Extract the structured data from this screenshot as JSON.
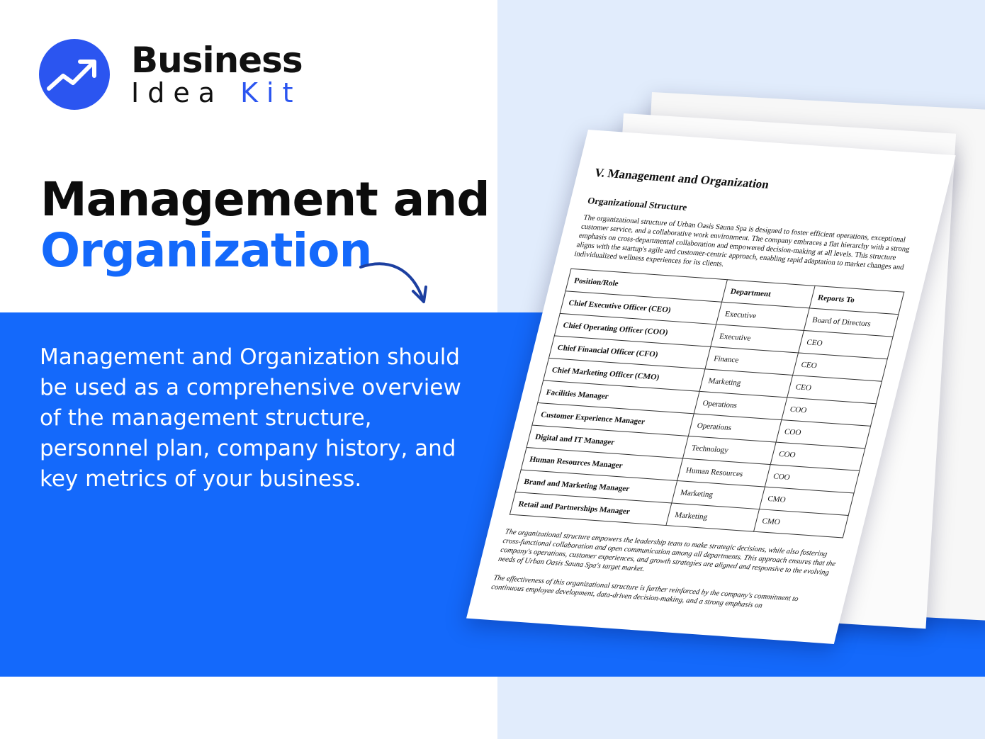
{
  "logo": {
    "line1": "Business",
    "line2a": "Idea",
    "line2b": "Kit"
  },
  "title": {
    "line1": "Management and",
    "line2": "Organization"
  },
  "description": "Management and Organization should be used as a comprehensive overview of the management structure, personnel plan, company history, and key metrics of your business.",
  "colors": {
    "accent": "#1469fb",
    "panel": "#e1ecfc",
    "logo": "#2b55f0"
  },
  "document": {
    "heading": "V. Management and Organization",
    "subheading": "Organizational Structure",
    "paragraph": "The organizational structure of Urban Oasis Sauna Spa is designed to foster efficient operations, exceptional customer service, and a collaborative work environment. The company embraces a flat hierarchy with a strong emphasis on cross-departmental collaboration and empowered decision-making at all levels. This structure aligns with the startup's agile and customer-centric approach, enabling rapid adaptation to market changes and individualized wellness experiences for its clients.",
    "table": {
      "headers": [
        "Position/Role",
        "Department",
        "Reports To"
      ],
      "rows": [
        [
          "Chief Executive Officer (CEO)",
          "Executive",
          "Board of Directors"
        ],
        [
          "Chief Operating Officer (COO)",
          "Executive",
          "CEO"
        ],
        [
          "Chief Financial Officer (CFO)",
          "Finance",
          "CEO"
        ],
        [
          "Chief Marketing Officer (CMO)",
          "Marketing",
          "CEO"
        ],
        [
          "Facilities Manager",
          "Operations",
          "COO"
        ],
        [
          "Customer Experience Manager",
          "Operations",
          "COO"
        ],
        [
          "Digital and IT Manager",
          "Technology",
          "COO"
        ],
        [
          "Human Resources Manager",
          "Human Resources",
          "COO"
        ],
        [
          "Brand and Marketing Manager",
          "Marketing",
          "CMO"
        ],
        [
          "Retail and Partnerships Manager",
          "Marketing",
          "CMO"
        ]
      ]
    },
    "footer1": "The organizational structure empowers the leadership team to make strategic decisions, while also fostering cross-functional collaboration and open communication among all departments. This approach ensures that the company's operations, customer experiences, and growth strategies are aligned and responsive to the evolving needs of Urban Oasis Sauna Spa's target market.",
    "footer2": "The effectiveness of this organizational structure is further reinforced by the company's commitment to continuous employee development, data-driven decision-making, and a strong emphasis on"
  }
}
